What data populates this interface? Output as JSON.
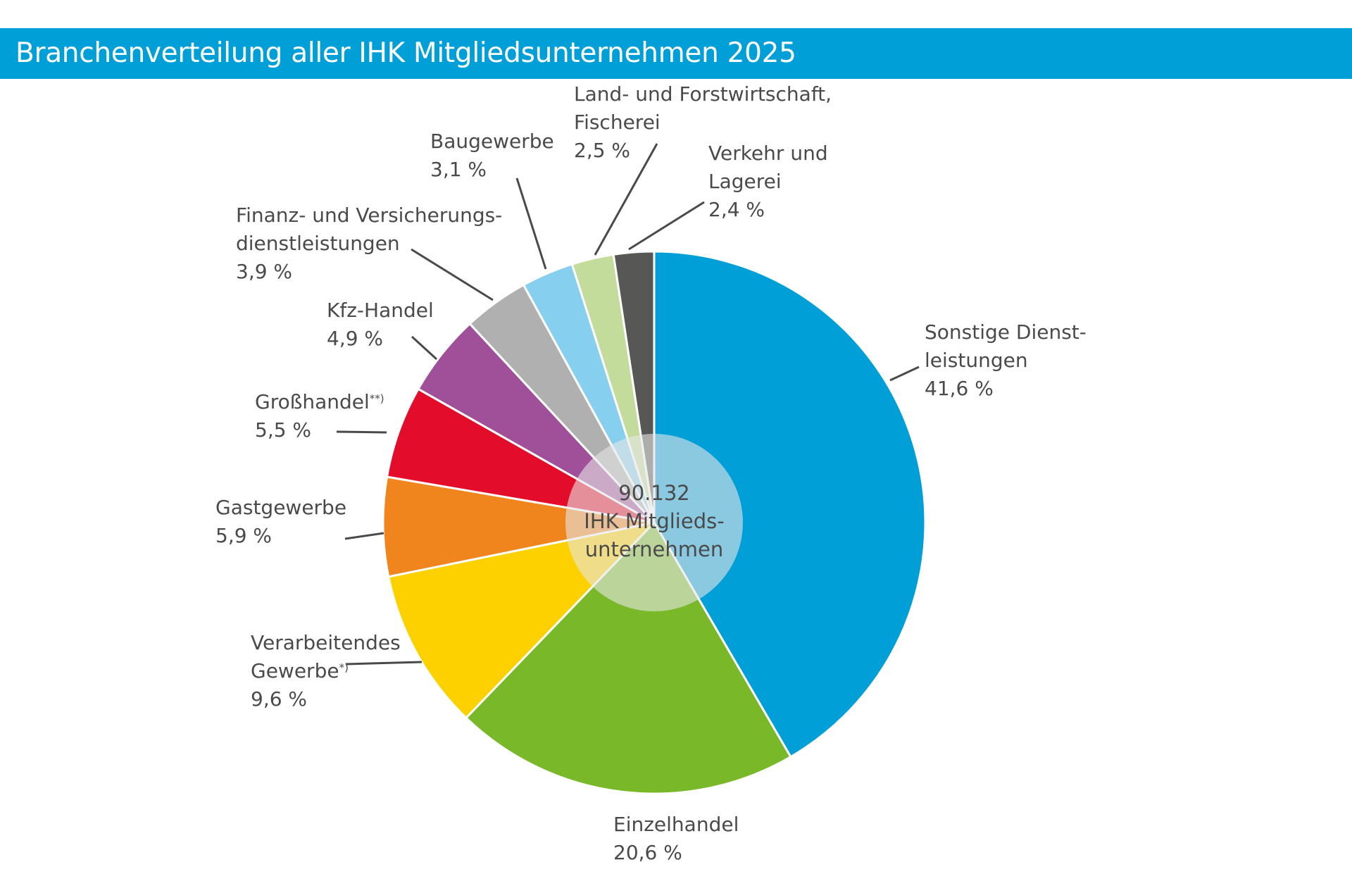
{
  "header": {
    "title": "Branchenverteilung aller IHK Mitgliedsunternehmen 2025"
  },
  "center": {
    "line1": "90.132",
    "line2": "IHK Mitglieds-",
    "line3": "unternehmen"
  },
  "colors": {
    "header_bar": "#009fd7",
    "separator": "#ffffff",
    "center_overlay": "#e6e6e6",
    "leader_lines": "#4a4a4a"
  },
  "chart_data": {
    "type": "pie",
    "title": "Branchenverteilung aller IHK Mitgliedsunternehmen 2025",
    "total": 90132,
    "unit": "%",
    "series": [
      {
        "label_lines": [
          "Sonstige Dienst-",
          "leistungen"
        ],
        "value": 41.6,
        "value_text": "41,6 %",
        "color": "#009fd7"
      },
      {
        "label_lines": [
          "Einzelhandel"
        ],
        "value": 20.6,
        "value_text": "20,6 %",
        "color": "#79b829"
      },
      {
        "label_lines": [
          "Verarbeitendes",
          "Gewerbe"
        ],
        "footnote": "*)",
        "value": 9.6,
        "value_text": "9,6 %",
        "color": "#fdd000"
      },
      {
        "label_lines": [
          "Gastgewerbe"
        ],
        "value": 5.9,
        "value_text": "5,9 %",
        "color": "#ef851c"
      },
      {
        "label_lines": [
          "Großhandel"
        ],
        "footnote": "**)",
        "value": 5.5,
        "value_text": "5,5 %",
        "color": "#e30d2b"
      },
      {
        "label_lines": [
          "Kfz-Handel"
        ],
        "value": 4.9,
        "value_text": "4,9 %",
        "color": "#a05098"
      },
      {
        "label_lines": [
          "Finanz- und Versicherungs-",
          "dienstleistungen"
        ],
        "value": 3.9,
        "value_text": "3,9 %",
        "color": "#b0b0b0"
      },
      {
        "label_lines": [
          "Baugewerbe"
        ],
        "value": 3.1,
        "value_text": "3,1 %",
        "color": "#87cfee"
      },
      {
        "label_lines": [
          "Land- und Forstwirtschaft,",
          "Fischerei"
        ],
        "value": 2.5,
        "value_text": "2,5 %",
        "color": "#c3dc9c"
      },
      {
        "label_lines": [
          "Verkehr und",
          "Lagerei"
        ],
        "value": 2.4,
        "value_text": "2,4 %",
        "color": "#575756"
      }
    ]
  }
}
